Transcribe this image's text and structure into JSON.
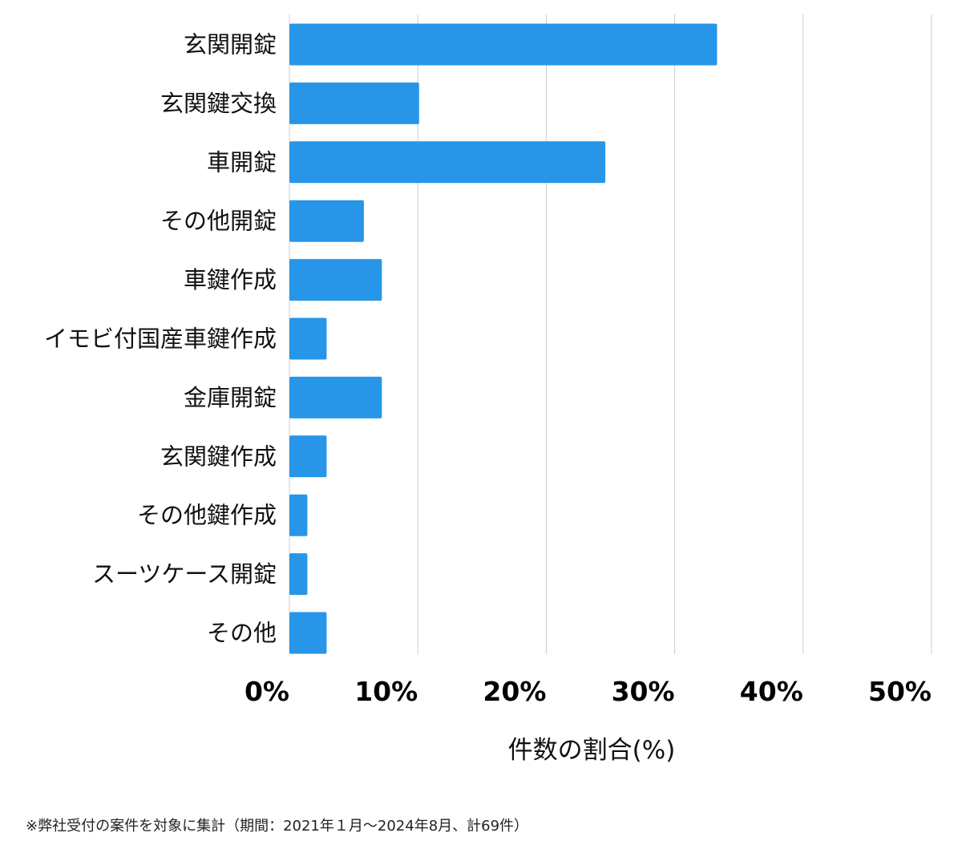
{
  "chart_data": {
    "type": "bar",
    "orientation": "horizontal",
    "categories": [
      "玄関開錠",
      "玄関鍵交換",
      "車開錠",
      "その他開錠",
      "車鍵作成",
      "イモビ付国産車鍵作成",
      "金庫開錠",
      "玄関鍵作成",
      "その他鍵作成",
      "スーツケース開錠",
      "その他"
    ],
    "values": [
      33.3,
      10.1,
      24.6,
      5.8,
      7.2,
      2.9,
      7.2,
      2.9,
      1.4,
      1.4,
      2.9
    ],
    "xlabel": "件数の割合(%)",
    "ylabel": "",
    "xlim": [
      0,
      50
    ],
    "ticks": [
      0,
      10,
      20,
      30,
      40,
      50
    ],
    "tick_labels": [
      "0%",
      "10%",
      "20%",
      "30%",
      "40%",
      "50%"
    ],
    "grid": true,
    "bar_color": "#2796e8"
  },
  "footnote": "※弊社受付の案件を対象に集計（期間：2021年１月～2024年8月、計69件）"
}
